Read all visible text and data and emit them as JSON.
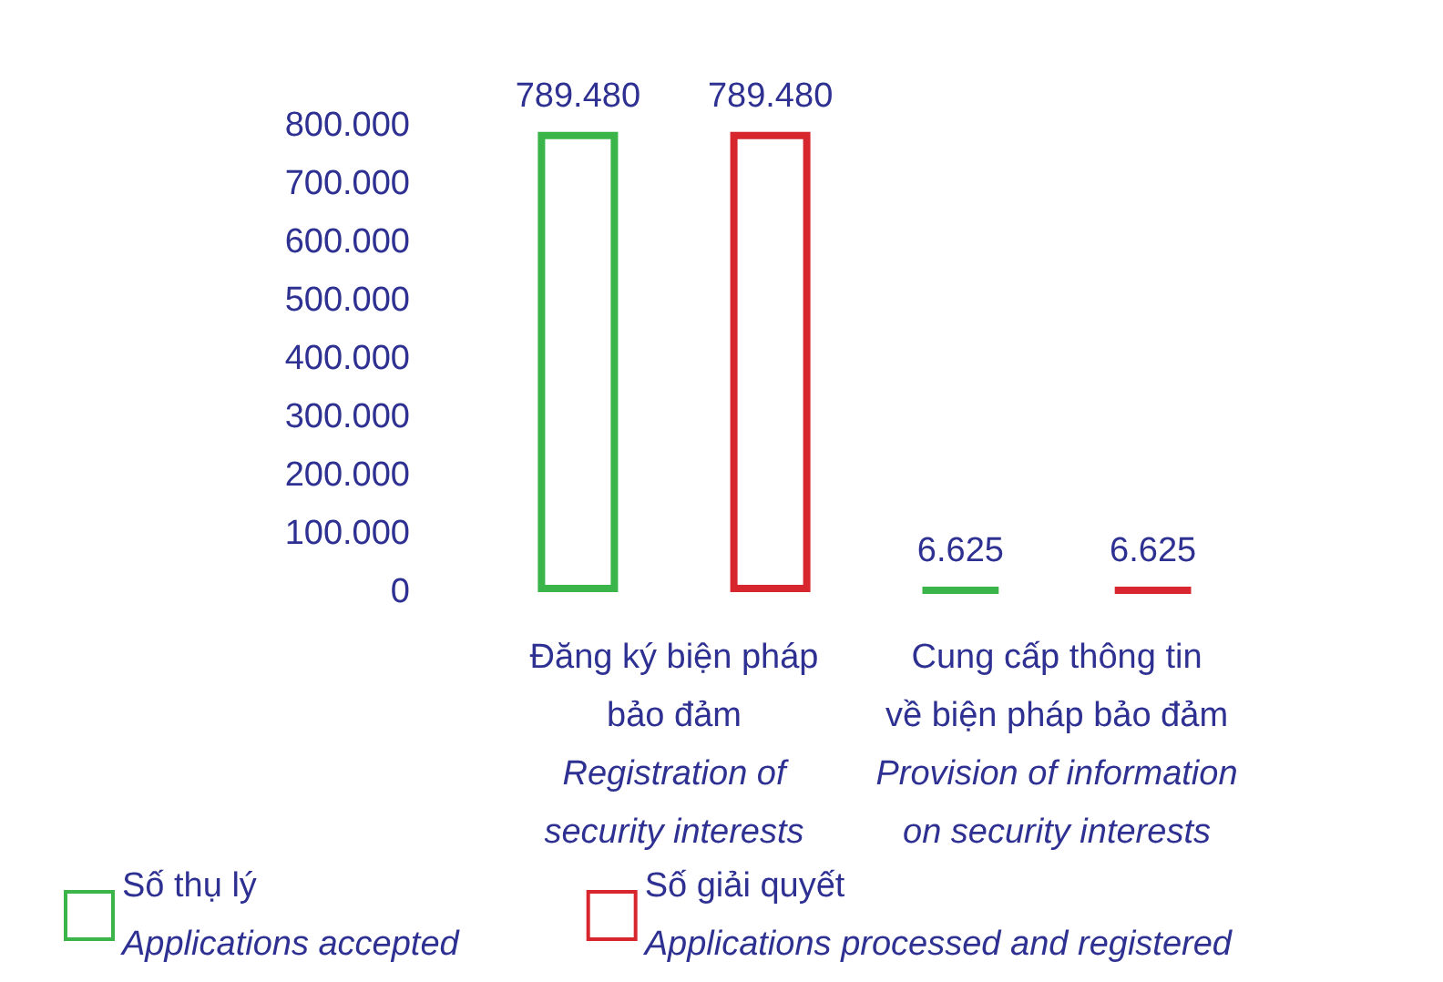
{
  "chart_data": {
    "type": "bar",
    "categories": [
      "Đăng ký biện pháp\nbảo đảm\nRegistration of\nsecurity interests",
      "Cung cấp thông tin\nvề biện pháp bảo đảm\nProvision of information\non security interests"
    ],
    "series": [
      {
        "name": "Số thụ lý\nApplications accepted",
        "color": "#3bb54a",
        "values": [
          789480,
          6625
        ],
        "value_labels": [
          "789.480",
          "6.625"
        ]
      },
      {
        "name": "Số giải quyết\nApplications processed and registered",
        "color": "#d7262d",
        "values": [
          789480,
          6625
        ],
        "value_labels": [
          "789.480",
          "6.625"
        ]
      }
    ],
    "ylim": [
      0,
      800000
    ],
    "yticks": [
      {
        "value": 0,
        "label": "0"
      },
      {
        "value": 100000,
        "label": "100.000"
      },
      {
        "value": 200000,
        "label": "200.000"
      },
      {
        "value": 300000,
        "label": "300.000"
      },
      {
        "value": 400000,
        "label": "400.000"
      },
      {
        "value": 500000,
        "label": "500.000"
      },
      {
        "value": 600000,
        "label": "600.000"
      },
      {
        "value": 700000,
        "label": "700.000"
      },
      {
        "value": 800000,
        "label": "800.000"
      }
    ],
    "grid": false,
    "legend": "bottom left"
  }
}
